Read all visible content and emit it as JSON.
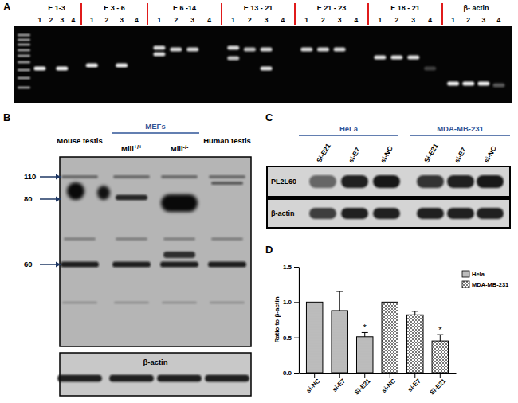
{
  "panels": {
    "A": {
      "letter": "A",
      "groups": [
        {
          "label": "E 1-3",
          "lanes": [
            1,
            2,
            3,
            4
          ]
        },
        {
          "label": "E 3 - 6",
          "lanes": [
            1,
            2,
            3,
            4
          ]
        },
        {
          "label": "E 6 -14",
          "lanes": [
            1,
            2,
            3,
            4
          ]
        },
        {
          "label": "E 13 - 21",
          "lanes": [
            1,
            2,
            3,
            4
          ]
        },
        {
          "label": "E 21 - 23",
          "lanes": [
            1,
            2,
            3,
            4
          ]
        },
        {
          "label": "E 18 - 21",
          "lanes": [
            1,
            2,
            3,
            4
          ]
        },
        {
          "label": "β- actin",
          "lanes": [
            1,
            2,
            3,
            4
          ]
        }
      ]
    },
    "B": {
      "letter": "B",
      "group_label": "MEFs",
      "samples": [
        {
          "label": "Mouse testis"
        },
        {
          "label": "Mili",
          "sup": "+/+"
        },
        {
          "label": "Mili",
          "sup": "-/-"
        },
        {
          "label": "Human testis"
        }
      ],
      "markers": [
        110,
        80,
        60
      ],
      "loading_label": "β-actin"
    },
    "C": {
      "letter": "C",
      "groups": [
        {
          "label": "HeLa",
          "lanes": [
            "Si-E21",
            "si-E7",
            "si-NC"
          ]
        },
        {
          "label": "MDA-MB-231",
          "lanes": [
            "Si-E21",
            "si-E7",
            "si-NC"
          ]
        }
      ],
      "blots": [
        "PL2L60",
        "β-actin"
      ]
    },
    "D": {
      "letter": "D"
    }
  },
  "chart_data": {
    "type": "bar",
    "categories": [
      "si-NC",
      "si-E7",
      "Si-E21",
      "si-NC",
      "si-E7",
      "Si-E21"
    ],
    "series": [
      {
        "name": "Hela",
        "color": "#555555",
        "values": [
          1.0,
          0.88,
          0.51,
          null,
          null,
          null
        ],
        "errors": [
          null,
          0.27,
          0.06,
          null,
          null,
          null
        ],
        "annotations": [
          null,
          null,
          "*",
          null,
          null,
          null
        ]
      },
      {
        "name": "MDA-MB-231",
        "color": "#555555",
        "values": [
          null,
          null,
          null,
          1.0,
          0.82,
          0.45
        ],
        "errors": [
          null,
          null,
          null,
          null,
          0.05,
          0.09
        ],
        "annotations": [
          null,
          null,
          null,
          null,
          null,
          "*"
        ]
      }
    ],
    "y_label": "Ratio to β-actin",
    "ylim": [
      0,
      1.5
    ],
    "yticks": [
      {
        "value": 0,
        "label": "0.0"
      },
      {
        "value": 0.5,
        "label": "0.5"
      },
      {
        "value": 1,
        "label": "1.0"
      },
      {
        "value": 1.5,
        "label": "1.5"
      }
    ],
    "legend": "upper right"
  }
}
